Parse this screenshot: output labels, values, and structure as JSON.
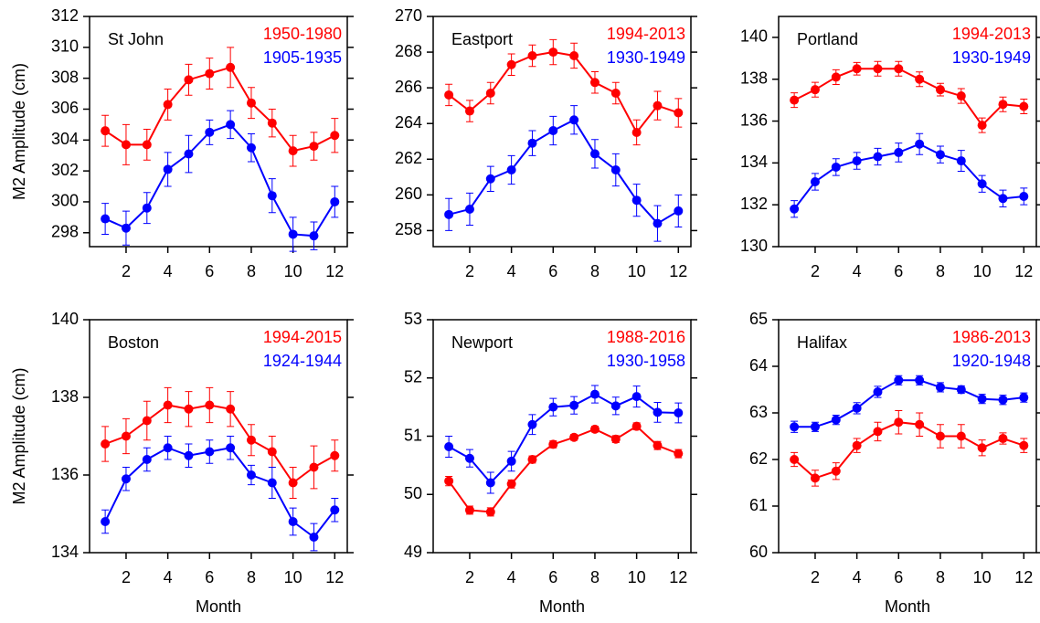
{
  "chart_data": [
    {
      "type": "line",
      "title": "St John",
      "ylabel": "M2 Amplitude (cm)",
      "x": [
        1,
        2,
        3,
        4,
        5,
        6,
        7,
        8,
        9,
        10,
        11,
        12
      ],
      "xlim": [
        0.25,
        12.6
      ],
      "xticks": [
        2,
        4,
        6,
        8,
        10,
        12
      ],
      "ylim": [
        297.1,
        312
      ],
      "yticks": [
        298,
        300,
        302,
        304,
        306,
        308,
        310,
        312
      ],
      "series": [
        {
          "name": "1950-1980",
          "color": "#ff0000",
          "values": [
            304.6,
            303.7,
            303.7,
            306.3,
            307.9,
            308.3,
            308.7,
            306.4,
            305.1,
            303.3,
            303.6,
            304.3
          ],
          "errors": [
            1.0,
            1.3,
            1.0,
            1.0,
            1.0,
            1.0,
            1.3,
            1.0,
            0.9,
            1.0,
            0.9,
            1.1
          ]
        },
        {
          "name": "1905-1935",
          "color": "#0000ff",
          "values": [
            298.9,
            298.3,
            299.6,
            302.1,
            303.1,
            304.5,
            305.0,
            303.5,
            300.4,
            297.9,
            297.8,
            300.0
          ],
          "errors": [
            1.0,
            1.1,
            1.0,
            1.1,
            1.2,
            0.8,
            0.9,
            0.9,
            1.1,
            1.1,
            0.9,
            1.0
          ]
        }
      ]
    },
    {
      "type": "line",
      "title": "Eastport",
      "x": [
        1,
        2,
        3,
        4,
        5,
        6,
        7,
        8,
        9,
        10,
        11,
        12
      ],
      "xlim": [
        0.25,
        12.6
      ],
      "xticks": [
        2,
        4,
        6,
        8,
        10,
        12
      ],
      "ylim": [
        257.1,
        270
      ],
      "yticks": [
        258,
        260,
        262,
        264,
        266,
        268,
        270
      ],
      "series": [
        {
          "name": "1994-2013",
          "color": "#ff0000",
          "values": [
            265.6,
            264.7,
            265.7,
            267.3,
            267.8,
            268.0,
            267.8,
            266.3,
            265.7,
            263.5,
            265.0,
            264.6
          ],
          "errors": [
            0.6,
            0.6,
            0.6,
            0.6,
            0.6,
            0.7,
            0.7,
            0.6,
            0.6,
            0.7,
            0.8,
            0.8
          ]
        },
        {
          "name": "1930-1949",
          "color": "#0000ff",
          "values": [
            258.9,
            259.2,
            260.9,
            261.4,
            262.9,
            263.6,
            264.2,
            262.3,
            261.4,
            259.7,
            258.4,
            259.1
          ],
          "errors": [
            0.9,
            0.9,
            0.7,
            0.8,
            0.7,
            0.8,
            0.8,
            0.8,
            0.9,
            0.9,
            1.0,
            0.9
          ]
        }
      ]
    },
    {
      "type": "line",
      "title": "Portland",
      "x": [
        1,
        2,
        3,
        4,
        5,
        6,
        7,
        8,
        9,
        10,
        11,
        12
      ],
      "xlim": [
        0.25,
        12.6
      ],
      "xticks": [
        2,
        4,
        6,
        8,
        10,
        12
      ],
      "ylim": [
        130,
        141
      ],
      "yticks": [
        130,
        132,
        134,
        136,
        138,
        140
      ],
      "series": [
        {
          "name": "1994-2013",
          "color": "#ff0000",
          "values": [
            137.0,
            137.5,
            138.1,
            138.5,
            138.5,
            138.5,
            138.0,
            137.5,
            137.2,
            135.8,
            136.8,
            136.7
          ],
          "errors": [
            0.35,
            0.35,
            0.35,
            0.3,
            0.35,
            0.35,
            0.35,
            0.3,
            0.35,
            0.35,
            0.35,
            0.35
          ]
        },
        {
          "name": "1930-1949",
          "color": "#0000ff",
          "values": [
            131.8,
            133.1,
            133.8,
            134.1,
            134.3,
            134.5,
            134.9,
            134.4,
            134.1,
            133.0,
            132.3,
            132.4
          ],
          "errors": [
            0.4,
            0.4,
            0.4,
            0.4,
            0.4,
            0.45,
            0.5,
            0.4,
            0.5,
            0.4,
            0.4,
            0.4
          ]
        }
      ]
    },
    {
      "type": "line",
      "title": "Boston",
      "ylabel": "M2 Amplitude (cm)",
      "xlabel": "Month",
      "x": [
        1,
        2,
        3,
        4,
        5,
        6,
        7,
        8,
        9,
        10,
        11,
        12
      ],
      "xlim": [
        0.25,
        12.6
      ],
      "xticks": [
        2,
        4,
        6,
        8,
        10,
        12
      ],
      "ylim": [
        134,
        140
      ],
      "yticks": [
        134,
        136,
        138,
        140
      ],
      "series": [
        {
          "name": "1994-2015",
          "color": "#ff0000",
          "values": [
            136.8,
            137.0,
            137.4,
            137.8,
            137.7,
            137.8,
            137.7,
            136.9,
            136.6,
            135.8,
            136.2,
            136.5
          ],
          "errors": [
            0.45,
            0.45,
            0.5,
            0.45,
            0.45,
            0.45,
            0.45,
            0.4,
            0.4,
            0.4,
            0.55,
            0.4
          ]
        },
        {
          "name": "1924-1944",
          "color": "#0000ff",
          "values": [
            134.8,
            135.9,
            136.4,
            136.7,
            136.5,
            136.6,
            136.7,
            136.0,
            135.8,
            134.8,
            134.4,
            135.1
          ],
          "errors": [
            0.3,
            0.3,
            0.3,
            0.3,
            0.3,
            0.3,
            0.3,
            0.25,
            0.4,
            0.35,
            0.35,
            0.3
          ]
        }
      ]
    },
    {
      "type": "line",
      "title": "Newport",
      "xlabel": "Month",
      "x": [
        1,
        2,
        3,
        4,
        5,
        6,
        7,
        8,
        9,
        10,
        11,
        12
      ],
      "xlim": [
        0.25,
        12.6
      ],
      "xticks": [
        2,
        4,
        6,
        8,
        10,
        12
      ],
      "ylim": [
        49,
        53
      ],
      "yticks": [
        49,
        50,
        51,
        52,
        53
      ],
      "series": [
        {
          "name": "1988-2016",
          "color": "#ff0000",
          "values": [
            50.23,
            49.73,
            49.7,
            50.18,
            50.6,
            50.86,
            50.98,
            51.12,
            50.95,
            51.17,
            50.84,
            50.7
          ],
          "errors": [
            0.08,
            0.07,
            0.07,
            0.07,
            0.06,
            0.06,
            0.05,
            0.05,
            0.06,
            0.06,
            0.07,
            0.07
          ]
        },
        {
          "name": "1930-1958",
          "color": "#0000ff",
          "values": [
            50.82,
            50.62,
            50.2,
            50.57,
            51.2,
            51.5,
            51.53,
            51.72,
            51.52,
            51.68,
            51.41,
            51.4
          ],
          "errors": [
            0.18,
            0.15,
            0.18,
            0.17,
            0.17,
            0.15,
            0.15,
            0.15,
            0.15,
            0.18,
            0.17,
            0.17
          ]
        }
      ]
    },
    {
      "type": "line",
      "title": "Halifax",
      "xlabel": "Month",
      "x": [
        1,
        2,
        3,
        4,
        5,
        6,
        7,
        8,
        9,
        10,
        11,
        12
      ],
      "xlim": [
        0.25,
        12.6
      ],
      "xticks": [
        2,
        4,
        6,
        8,
        10,
        12
      ],
      "ylim": [
        60,
        65
      ],
      "yticks": [
        60,
        61,
        62,
        63,
        64,
        65
      ],
      "series": [
        {
          "name": "1986-2013",
          "color": "#ff0000",
          "values": [
            62.0,
            61.6,
            61.75,
            62.3,
            62.6,
            62.8,
            62.75,
            62.5,
            62.5,
            62.25,
            62.45,
            62.3
          ],
          "errors": [
            0.15,
            0.17,
            0.18,
            0.15,
            0.2,
            0.25,
            0.25,
            0.25,
            0.25,
            0.17,
            0.12,
            0.15
          ]
        },
        {
          "name": "1920-1948",
          "color": "#0000ff",
          "values": [
            62.7,
            62.7,
            62.85,
            63.1,
            63.45,
            63.7,
            63.7,
            63.55,
            63.5,
            63.3,
            63.28,
            63.33
          ],
          "errors": [
            0.12,
            0.1,
            0.1,
            0.12,
            0.12,
            0.1,
            0.1,
            0.1,
            0.08,
            0.1,
            0.1,
            0.1
          ]
        }
      ]
    }
  ]
}
